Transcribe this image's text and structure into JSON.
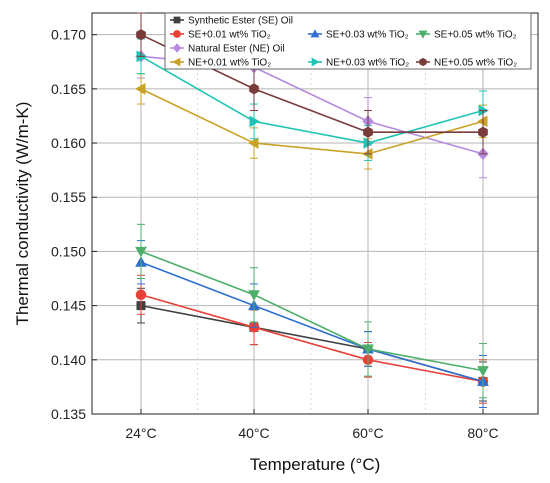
{
  "chart_data": {
    "type": "line",
    "title": "",
    "xlabel": "Temperature (°C)",
    "ylabel": "Thermal conductivity (W/m-K)",
    "categories": [
      "24°C",
      "40°C",
      "60°C",
      "80°C"
    ],
    "ylim": [
      0.135,
      0.172
    ],
    "yticks": [
      "0.135",
      "0.140",
      "0.145",
      "0.150",
      "0.155",
      "0.160",
      "0.165",
      "0.170"
    ],
    "grid": true,
    "legend_position": "top",
    "series": [
      {
        "name": "Synthetic Ester (SE) Oil",
        "color": "#404040",
        "marker": "square",
        "values": [
          0.145,
          0.143,
          0.141,
          0.138
        ],
        "errors": [
          0.0016,
          0.0016,
          0.0016,
          0.0018
        ]
      },
      {
        "name": "SE+0.01 wt% TiO₂",
        "color": "#e8413a",
        "marker": "circle",
        "values": [
          0.146,
          0.143,
          0.14,
          0.138
        ],
        "errors": [
          0.0018,
          0.0016,
          0.0016,
          0.002
        ]
      },
      {
        "name": "SE+0.03 wt% TiO₂",
        "color": "#2f6fd0",
        "marker": "triangle-up",
        "values": [
          0.149,
          0.145,
          0.141,
          0.138
        ],
        "errors": [
          0.002,
          0.002,
          0.0016,
          0.0024
        ]
      },
      {
        "name": "SE+0.05 wt% TiO₂",
        "color": "#4caf6a",
        "marker": "triangle-down",
        "values": [
          0.15,
          0.146,
          0.141,
          0.139
        ],
        "errors": [
          0.0025,
          0.0025,
          0.0025,
          0.0025
        ]
      },
      {
        "name": "Natural Ester (NE) Oil",
        "color": "#b58be0",
        "marker": "diamond",
        "values": [
          0.168,
          0.167,
          0.162,
          0.159
        ],
        "errors": [
          0.002,
          0.0022,
          0.0022,
          0.0022
        ]
      },
      {
        "name": "NE+0.01 wt% TiO₂",
        "color": "#c9a227",
        "marker": "triangle-left",
        "values": [
          0.165,
          0.16,
          0.159,
          0.162
        ],
        "errors": [
          0.0014,
          0.0014,
          0.0014,
          0.0015
        ]
      },
      {
        "name": "NE+0.03 wt% TiO₂",
        "color": "#20c4b4",
        "marker": "triangle-right",
        "values": [
          0.168,
          0.162,
          0.16,
          0.163
        ],
        "errors": [
          0.0016,
          0.0016,
          0.0016,
          0.0018
        ]
      },
      {
        "name": "NE+0.05 wt% TiO₂",
        "color": "#7a3b3b",
        "marker": "hexagon",
        "values": [
          0.17,
          0.165,
          0.161,
          0.161
        ],
        "errors": [
          0.002,
          0.002,
          0.002,
          0.002
        ]
      }
    ]
  }
}
